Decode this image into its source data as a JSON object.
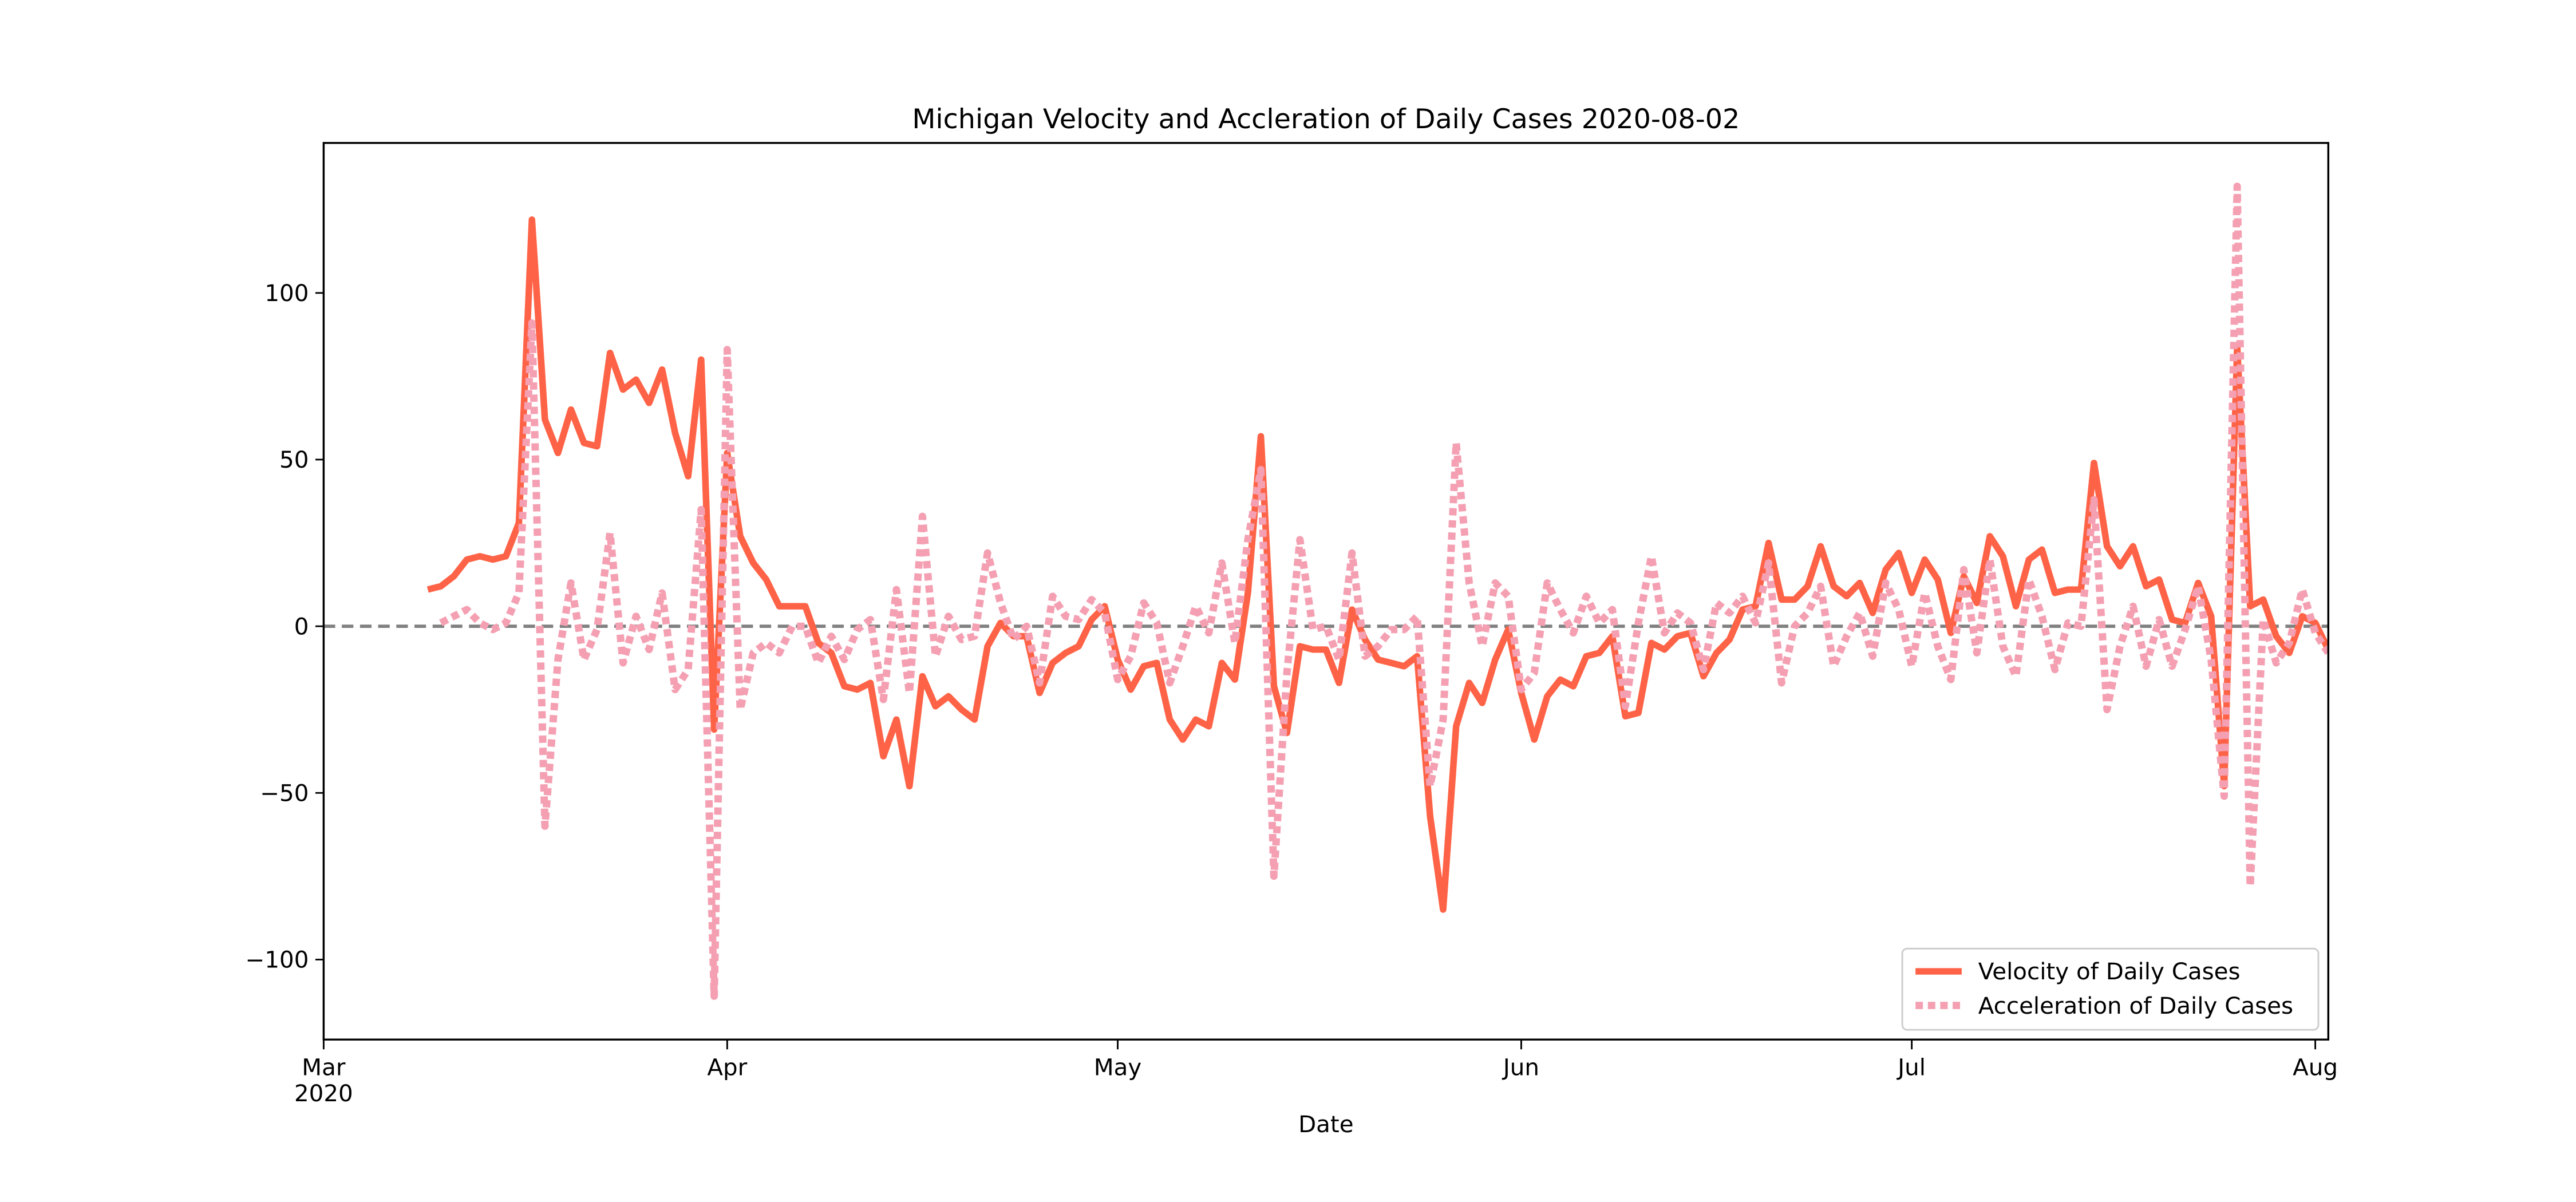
{
  "chart_data": {
    "type": "line",
    "title": "Michigan Velocity and Accleration of Daily Cases 2020-08-02",
    "x_label": "Date",
    "x": [
      "2020-03-09",
      "2020-03-10",
      "2020-03-11",
      "2020-03-12",
      "2020-03-13",
      "2020-03-14",
      "2020-03-15",
      "2020-03-16",
      "2020-03-17",
      "2020-03-18",
      "2020-03-19",
      "2020-03-20",
      "2020-03-21",
      "2020-03-22",
      "2020-03-23",
      "2020-03-24",
      "2020-03-25",
      "2020-03-26",
      "2020-03-27",
      "2020-03-28",
      "2020-03-29",
      "2020-03-30",
      "2020-03-31",
      "2020-04-01",
      "2020-04-02",
      "2020-04-03",
      "2020-04-04",
      "2020-04-05",
      "2020-04-06",
      "2020-04-07",
      "2020-04-08",
      "2020-04-09",
      "2020-04-10",
      "2020-04-11",
      "2020-04-12",
      "2020-04-13",
      "2020-04-14",
      "2020-04-15",
      "2020-04-16",
      "2020-04-17",
      "2020-04-18",
      "2020-04-19",
      "2020-04-20",
      "2020-04-21",
      "2020-04-22",
      "2020-04-23",
      "2020-04-24",
      "2020-04-25",
      "2020-04-26",
      "2020-04-27",
      "2020-04-28",
      "2020-04-29",
      "2020-04-30",
      "2020-05-01",
      "2020-05-02",
      "2020-05-03",
      "2020-05-04",
      "2020-05-05",
      "2020-05-06",
      "2020-05-07",
      "2020-05-08",
      "2020-05-09",
      "2020-05-10",
      "2020-05-11",
      "2020-05-12",
      "2020-05-13",
      "2020-05-14",
      "2020-05-15",
      "2020-05-16",
      "2020-05-17",
      "2020-05-18",
      "2020-05-19",
      "2020-05-20",
      "2020-05-21",
      "2020-05-22",
      "2020-05-23",
      "2020-05-24",
      "2020-05-25",
      "2020-05-26",
      "2020-05-27",
      "2020-05-28",
      "2020-05-29",
      "2020-05-30",
      "2020-05-31",
      "2020-06-01",
      "2020-06-02",
      "2020-06-03",
      "2020-06-04",
      "2020-06-05",
      "2020-06-06",
      "2020-06-07",
      "2020-06-08",
      "2020-06-09",
      "2020-06-10",
      "2020-06-11",
      "2020-06-12",
      "2020-06-13",
      "2020-06-14",
      "2020-06-15",
      "2020-06-16",
      "2020-06-17",
      "2020-06-18",
      "2020-06-19",
      "2020-06-20",
      "2020-06-21",
      "2020-06-22",
      "2020-06-23",
      "2020-06-24",
      "2020-06-25",
      "2020-06-26",
      "2020-06-27",
      "2020-06-28",
      "2020-06-29",
      "2020-06-30",
      "2020-07-01",
      "2020-07-02",
      "2020-07-03",
      "2020-07-04",
      "2020-07-05",
      "2020-07-06",
      "2020-07-07",
      "2020-07-08",
      "2020-07-09",
      "2020-07-10",
      "2020-07-11",
      "2020-07-12",
      "2020-07-13",
      "2020-07-14",
      "2020-07-15",
      "2020-07-16",
      "2020-07-17",
      "2020-07-18",
      "2020-07-19",
      "2020-07-20",
      "2020-07-21",
      "2020-07-22",
      "2020-07-23",
      "2020-07-24",
      "2020-07-25",
      "2020-07-26",
      "2020-07-27",
      "2020-07-28",
      "2020-07-29",
      "2020-07-30",
      "2020-07-31",
      "2020-08-01",
      "2020-08-02"
    ],
    "series": [
      {
        "name": "Velocity of Daily Cases",
        "color": "#ff6347",
        "style": "solid",
        "values": [
          11,
          12,
          15,
          20,
          21,
          20,
          21,
          31,
          122,
          62,
          52,
          65,
          55,
          54,
          82,
          71,
          74,
          67,
          77,
          58,
          45,
          80,
          -31,
          52,
          27,
          19,
          14,
          6,
          6,
          6,
          -5,
          -8,
          -18,
          -19,
          -17,
          -39,
          -28,
          -48,
          -15,
          -24,
          -21,
          -25,
          -28,
          -6,
          1,
          -3,
          -3,
          -20,
          -11,
          -8,
          -6,
          2,
          6,
          -10,
          -19,
          -12,
          -11,
          -28,
          -34,
          -28,
          -30,
          -11,
          -16,
          10,
          57,
          -18,
          -32,
          -6,
          -7,
          -7,
          -17,
          5,
          -4,
          -10,
          -11,
          -12,
          -9,
          -57,
          -85,
          -30,
          -17,
          -23,
          -10,
          -1,
          -20,
          -34,
          -21,
          -16,
          -18,
          -9,
          -8,
          -3,
          -27,
          -26,
          -5,
          -7,
          -3,
          -2,
          -15,
          -8,
          -4,
          5,
          6,
          25,
          8,
          8,
          12,
          24,
          12,
          9,
          13,
          4,
          17,
          22,
          10,
          20,
          14,
          -2,
          15,
          7,
          27,
          21,
          6,
          20,
          23,
          10,
          11,
          11,
          49,
          24,
          18,
          24,
          12,
          14,
          2,
          1,
          13,
          3,
          -48,
          84,
          6,
          8,
          -3,
          -8,
          3,
          1,
          -7
        ]
      },
      {
        "name": "Acceleration of Daily Cases",
        "color": "#f4a0b2",
        "style": "dotted",
        "values": [
          null,
          1,
          3,
          5,
          1,
          -1,
          1,
          10,
          91,
          -60,
          -10,
          13,
          -10,
          -1,
          28,
          -11,
          3,
          -7,
          10,
          -19,
          -13,
          35,
          -111,
          83,
          -25,
          -8,
          -5,
          -8,
          0,
          0,
          -11,
          -3,
          -10,
          -1,
          2,
          -22,
          11,
          -20,
          33,
          -9,
          3,
          -4,
          -3,
          22,
          7,
          -4,
          0,
          -17,
          9,
          3,
          2,
          8,
          4,
          -16,
          -9,
          7,
          1,
          -17,
          -6,
          6,
          -2,
          19,
          -5,
          26,
          47,
          -75,
          -14,
          26,
          -1,
          0,
          -10,
          22,
          -9,
          -6,
          -1,
          -1,
          3,
          -48,
          -28,
          55,
          13,
          -6,
          13,
          9,
          -19,
          -14,
          13,
          5,
          -2,
          9,
          1,
          5,
          -24,
          1,
          21,
          -2,
          4,
          1,
          -13,
          7,
          4,
          9,
          1,
          19,
          -17,
          0,
          4,
          12,
          -12,
          -3,
          4,
          -9,
          13,
          5,
          -12,
          10,
          -6,
          -16,
          17,
          -8,
          20,
          -6,
          -15,
          14,
          3,
          -13,
          1,
          0,
          38,
          -25,
          -6,
          6,
          -12,
          2,
          -12,
          -1,
          12,
          -10,
          -51,
          132,
          -78,
          2,
          -11,
          -5,
          11,
          -2,
          -8
        ]
      }
    ],
    "xlim": [
      "2020-03-01",
      "2020-08-02"
    ],
    "xticks": [
      {
        "value": "2020-03-01",
        "label": "Mar\n2020"
      },
      {
        "value": "2020-04-01",
        "label": "Apr"
      },
      {
        "value": "2020-05-01",
        "label": "May"
      },
      {
        "value": "2020-06-01",
        "label": "Jun"
      },
      {
        "value": "2020-07-01",
        "label": "Jul"
      },
      {
        "value": "2020-08-01",
        "label": "Aug"
      }
    ],
    "ylim": [
      -124,
      145
    ],
    "yticks": [
      {
        "value": -100,
        "label": "−100"
      },
      {
        "value": -50,
        "label": "−50"
      },
      0,
      50,
      100
    ],
    "hline": 0,
    "grid": false,
    "legend": "lower right"
  }
}
